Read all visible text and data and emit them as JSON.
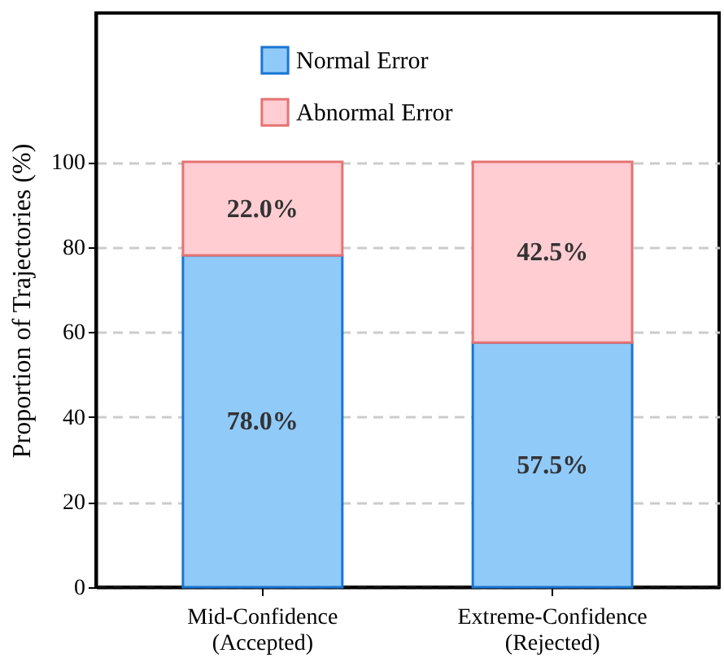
{
  "chart_data": {
    "type": "bar",
    "stacked": true,
    "ylabel": "Proportion of Trajectories (%)",
    "categories": [
      "Mid-Confidence\n(Accepted)",
      "Extreme-Confidence\n(Rejected)"
    ],
    "series": [
      {
        "name": "Normal Error",
        "color": "#90caf9",
        "values": [
          78.0,
          57.5
        ],
        "value_labels": [
          "78.0%",
          "57.5%"
        ]
      },
      {
        "name": "Abnormal Error",
        "color": "#ffcdd2",
        "values": [
          22.0,
          42.5
        ],
        "value_labels": [
          "22.0%",
          "42.5%"
        ]
      }
    ],
    "ylim": [
      0,
      135
    ],
    "yticks": [
      0,
      20,
      40,
      60,
      80,
      100
    ],
    "grid": "y",
    "legend": "top"
  }
}
